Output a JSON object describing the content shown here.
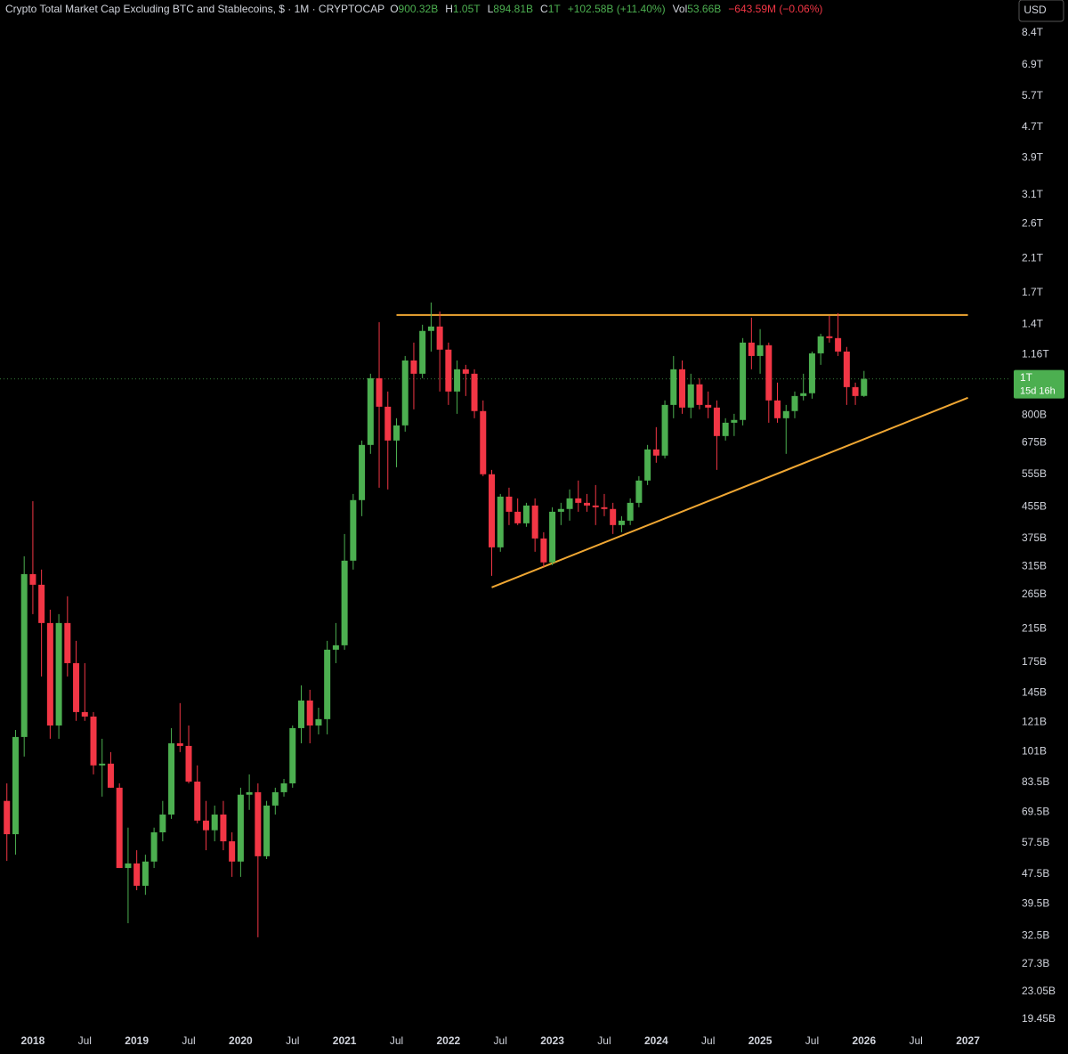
{
  "chart_data": {
    "type": "candlestick",
    "title": "Crypto Total Market Cap Excluding BTC and Stablecoins, $ · 1M · CRYPTOCAP",
    "ohlc_labels": [
      {
        "key": "O",
        "label": "900.32B"
      },
      {
        "key": "H",
        "label": "1.05T"
      },
      {
        "key": "L",
        "label": "894.81B"
      },
      {
        "key": "C",
        "label": "1T"
      }
    ],
    "change_label": "+102.58B (+11.40%)",
    "volume_key": "Vol",
    "volume_label": "53.66B",
    "volume_change_label": "−643.59M (−0.06%)",
    "currency": "USD",
    "last_price_label": "1T",
    "countdown": "15d 16h",
    "up_color": "#4caf50",
    "down_color": "#f23645",
    "log_scale": true,
    "grid": false,
    "x": [
      "2017-10",
      "2017-11",
      "2017-12",
      "2018-01",
      "2018-02",
      "2018-03",
      "2018-04",
      "2018-05",
      "2018-06",
      "2018-07",
      "2018-08",
      "2018-09",
      "2018-10",
      "2018-11",
      "2018-12",
      "2019-01",
      "2019-02",
      "2019-03",
      "2019-04",
      "2019-05",
      "2019-06",
      "2019-07",
      "2019-08",
      "2019-09",
      "2019-10",
      "2019-11",
      "2019-12",
      "2020-01",
      "2020-02",
      "2020-03",
      "2020-04",
      "2020-05",
      "2020-06",
      "2020-07",
      "2020-08",
      "2020-09",
      "2020-10",
      "2020-11",
      "2020-12",
      "2021-01",
      "2021-02",
      "2021-03",
      "2021-04",
      "2021-05",
      "2021-06",
      "2021-07",
      "2021-08",
      "2021-09",
      "2021-10",
      "2021-11",
      "2021-12",
      "2022-01",
      "2022-02",
      "2022-03",
      "2022-04",
      "2022-05",
      "2022-06",
      "2022-07",
      "2022-08",
      "2022-09",
      "2022-10",
      "2022-11",
      "2022-12",
      "2023-01",
      "2023-02",
      "2023-03",
      "2023-04",
      "2023-05",
      "2023-06",
      "2023-07",
      "2023-08",
      "2023-09",
      "2023-10",
      "2023-11",
      "2023-12",
      "2024-01",
      "2024-02",
      "2024-03",
      "2024-04",
      "2024-05",
      "2024-06",
      "2024-07",
      "2024-08",
      "2024-09",
      "2024-10",
      "2024-11",
      "2024-12",
      "2025-01",
      "2025-02",
      "2025-03",
      "2025-04",
      "2025-05",
      "2025-06",
      "2025-07",
      "2025-08",
      "2025-09",
      "2025-10",
      "2025-11",
      "2025-12",
      "2026-01"
    ],
    "open": [
      74.5,
      60.7,
      110.4,
      300.8,
      281.7,
      222.6,
      118.5,
      222.6,
      173.9,
      128.7,
      125.2,
      92.7,
      93.7,
      80.8,
      49.3,
      50.7,
      44.2,
      51.3,
      61.4,
      68.5,
      106.2,
      104.5,
      83.9,
      66.0,
      62.2,
      68.5,
      58.1,
      51.3,
      77.4,
      78.6,
      53.0,
      72.4,
      78.6,
      83.0,
      116.6,
      138.2,
      118.5,
      123.2,
      188.9,
      194.1,
      326.7,
      474.2,
      665.9,
      1004,
      842.5,
      684.2,
      751.0,
      1120,
      1032,
      1343,
      1380,
      1197,
      925.1,
      1060.6,
      1032,
      820.2,
      556.0,
      354.6,
      484.5,
      441.4,
      411.1,
      458.7,
      374.5,
      323.3,
      441.4,
      449.0,
      479.3,
      466.3,
      458.7,
      453.8,
      449.0,
      406.7,
      417.9,
      466.3,
      534.9,
      647.7,
      623.7,
      851.8,
      1060.6,
      838.0,
      966.8,
      851.8,
      838.0,
      703.4,
      763.4,
      776.5,
      1250,
      1151,
      1230,
      875.7,
      784.8,
      820.2,
      899.8,
      915.3,
      1170,
      1299,
      1285,
      1183,
      950.5,
      900.32
    ],
    "high": [
      83.0,
      115.3,
      335.7,
      471,
      309.3,
      241.6,
      235.1,
      262.4,
      199.5,
      173.9,
      128.7,
      109.2,
      100.6,
      83.0,
      63.2,
      55.0,
      53.5,
      63.2,
      74.5,
      116.6,
      136.0,
      118.5,
      92.7,
      74.5,
      72.4,
      74.5,
      61.4,
      80.8,
      87.7,
      83.0,
      74.5,
      80.8,
      85.3,
      118.5,
      151.7,
      147.6,
      132.2,
      199.5,
      222.6,
      385.0,
      492.5,
      684.2,
      1032,
      1418,
      925.1,
      784.8,
      1151,
      1250,
      1395,
      1600,
      1514,
      1250,
      1120,
      1090,
      1060.6,
      875.7,
      571.1,
      492.5,
      511.9,
      479.3,
      466.3,
      479.3,
      389.2,
      453.8,
      466.3,
      506.4,
      534.9,
      492.5,
      520.3,
      492.5,
      466.3,
      429.6,
      479.3,
      549.6,
      665.9,
      743.0,
      875.7,
      1151,
      1120,
      1032,
      1004,
      925.1,
      875.7,
      784.8,
      806.4,
      1285,
      1457,
      1358,
      1250,
      977.1,
      851.8,
      925.1,
      1032,
      1183,
      1320,
      1473,
      1498,
      1217,
      977.1,
      1050
    ],
    "low": [
      51.5,
      53.5,
      97.9,
      235.1,
      160.2,
      109.2,
      109.2,
      160.2,
      121.9,
      121.9,
      87.7,
      76.5,
      80.8,
      49.3,
      35.1,
      43.0,
      41.8,
      49.3,
      58.1,
      66.7,
      100.6,
      83.0,
      64.9,
      55.0,
      58.1,
      55.0,
      46.7,
      46.7,
      70.5,
      32.2,
      52.1,
      68.5,
      76.5,
      80.8,
      106.2,
      106.2,
      112.2,
      112.2,
      173.9,
      188.9,
      309.3,
      429.6,
      630.4,
      511.9,
      506.4,
      580.5,
      722.7,
      829.0,
      1004,
      1183,
      925.1,
      851.8,
      806.4,
      899.8,
      784.8,
      549.6,
      297.5,
      345.1,
      406.7,
      406.7,
      402.4,
      345.1,
      314.3,
      317.8,
      406.7,
      417.9,
      441.4,
      441.4,
      406.7,
      429.6,
      385.0,
      389.2,
      406.7,
      453.8,
      520.3,
      596.8,
      613.2,
      784.8,
      806.4,
      784.8,
      829.0,
      784.8,
      571.1,
      684.2,
      703.4,
      751.0,
      1060.6,
      1032,
      763.4,
      763.4,
      630.4,
      784.8,
      875.7,
      885.2,
      1090,
      1250,
      1151,
      851.8,
      851.8,
      894.81
    ],
    "close": [
      60.7,
      110.4,
      300.8,
      281.7,
      222.6,
      118.5,
      222.6,
      173.9,
      128.7,
      125.2,
      92.7,
      93.7,
      80.8,
      49.3,
      50.7,
      44.2,
      51.3,
      61.4,
      68.5,
      106.2,
      104.5,
      83.9,
      66.0,
      62.2,
      68.5,
      58.1,
      51.3,
      77.4,
      78.6,
      53.0,
      72.4,
      78.6,
      83.0,
      116.6,
      138.2,
      118.5,
      123.2,
      188.9,
      194.1,
      326.7,
      474.2,
      665.9,
      1004,
      842.5,
      684.2,
      751.0,
      1120,
      1032,
      1343,
      1380,
      1197,
      925.1,
      1060.6,
      1032,
      820.2,
      556.0,
      354.6,
      484.5,
      441.4,
      411.1,
      458.7,
      374.5,
      323.3,
      441.4,
      449.0,
      479.3,
      466.3,
      458.7,
      453.8,
      449.0,
      406.7,
      417.9,
      466.3,
      534.9,
      647.7,
      623.7,
      851.8,
      1060.6,
      838.0,
      966.8,
      851.8,
      838.0,
      703.4,
      763.4,
      776.5,
      1250,
      1151,
      1230,
      875.7,
      784.8,
      820.2,
      899.8,
      915.3,
      1170,
      1299,
      1285,
      1183,
      950.5,
      899.8,
      1000
    ],
    "trendlines": [
      {
        "color": "#f0a733",
        "x": [
          "2021-07",
          "2027-01"
        ],
        "values": [
          1481,
          1481
        ]
      },
      {
        "color": "#f0a733",
        "x": [
          "2022-06",
          "2027-01"
        ],
        "values": [
          277.2,
          890.0
        ]
      }
    ],
    "xlim": [
      "2017-09",
      "2027-03"
    ],
    "xticks": [
      {
        "value": "2018-01",
        "label": "2018"
      },
      {
        "value": "2018-07",
        "label": "Jul"
      },
      {
        "value": "2019-01",
        "label": "2019"
      },
      {
        "value": "2019-07",
        "label": "Jul"
      },
      {
        "value": "2020-01",
        "label": "2020"
      },
      {
        "value": "2020-07",
        "label": "Jul"
      },
      {
        "value": "2021-01",
        "label": "2021"
      },
      {
        "value": "2021-07",
        "label": "Jul"
      },
      {
        "value": "2022-01",
        "label": "2022"
      },
      {
        "value": "2022-07",
        "label": "Jul"
      },
      {
        "value": "2023-01",
        "label": "2023"
      },
      {
        "value": "2023-07",
        "label": "Jul"
      },
      {
        "value": "2024-01",
        "label": "2024"
      },
      {
        "value": "2024-07",
        "label": "Jul"
      },
      {
        "value": "2025-01",
        "label": "2025"
      },
      {
        "value": "2025-07",
        "label": "Jul"
      },
      {
        "value": "2026-01",
        "label": "2026"
      },
      {
        "value": "2026-07",
        "label": "Jul"
      },
      {
        "value": "2027-01",
        "label": "2027"
      }
    ],
    "ylim": [
      18.4,
      10290
    ],
    "yticks": [
      {
        "value": 8400,
        "label": "8.4T"
      },
      {
        "value": 6900,
        "label": "6.9T"
      },
      {
        "value": 5700,
        "label": "5.7T"
      },
      {
        "value": 4700,
        "label": "4.7T"
      },
      {
        "value": 3900,
        "label": "3.9T"
      },
      {
        "value": 3100,
        "label": "3.1T"
      },
      {
        "value": 2600,
        "label": "2.6T"
      },
      {
        "value": 2100,
        "label": "2.1T"
      },
      {
        "value": 1700,
        "label": "1.7T"
      },
      {
        "value": 1400,
        "label": "1.4T"
      },
      {
        "value": 1160,
        "label": "1.16T"
      },
      {
        "value": 800,
        "label": "800B"
      },
      {
        "value": 675,
        "label": "675B"
      },
      {
        "value": 555,
        "label": "555B"
      },
      {
        "value": 455,
        "label": "455B"
      },
      {
        "value": 375,
        "label": "375B"
      },
      {
        "value": 315,
        "label": "315B"
      },
      {
        "value": 265,
        "label": "265B"
      },
      {
        "value": 215,
        "label": "215B"
      },
      {
        "value": 175,
        "label": "175B"
      },
      {
        "value": 145,
        "label": "145B"
      },
      {
        "value": 121,
        "label": "121B"
      },
      {
        "value": 101,
        "label": "101B"
      },
      {
        "value": 83.5,
        "label": "83.5B"
      },
      {
        "value": 69.5,
        "label": "69.5B"
      },
      {
        "value": 57.5,
        "label": "57.5B"
      },
      {
        "value": 47.5,
        "label": "47.5B"
      },
      {
        "value": 39.5,
        "label": "39.5B"
      },
      {
        "value": 32.5,
        "label": "32.5B"
      },
      {
        "value": 27.3,
        "label": "27.3B"
      },
      {
        "value": 23.05,
        "label": "23.05B"
      },
      {
        "value": 19.45,
        "label": "19.45B"
      }
    ]
  }
}
